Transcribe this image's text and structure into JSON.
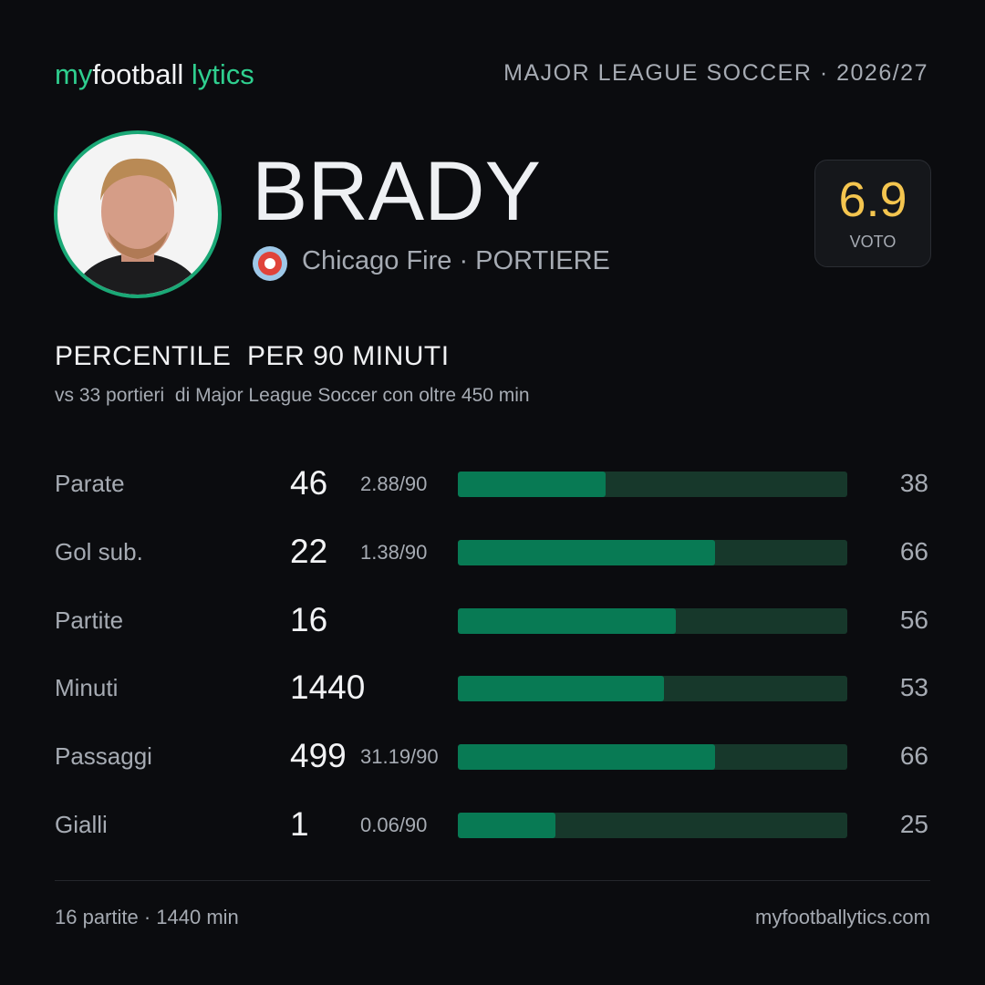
{
  "header": {
    "brand": [
      "my",
      "football",
      "lytics"
    ],
    "league": "MAJOR LEAGUE SOCCER · 2026/27"
  },
  "player": {
    "name": "BRADY",
    "team": "Chicago Fire · PORTIERE",
    "rating": "6.9",
    "rating_label": "VOTO"
  },
  "section": {
    "title": "PERCENTILE  PER 90 MINUTI",
    "subtitle": "vs 33 portieri  di Major League Soccer con oltre 450 min"
  },
  "stats": [
    {
      "label": "Parate",
      "value": 46,
      "per90": "2.88/90",
      "percentile": 38
    },
    {
      "label": "Gol sub.",
      "value": 22,
      "per90": "1.38/90",
      "percentile": 66
    },
    {
      "label": "Partite",
      "value": 16,
      "percentile": 56
    },
    {
      "label": "Minuti",
      "value": 1440,
      "percentile": 53
    },
    {
      "label": "Passaggi",
      "value": 499,
      "per90": "31.19/90",
      "percentile": 66
    },
    {
      "label": "Gialli",
      "value": 1,
      "per90": "0.06/90",
      "percentile": 25
    }
  ],
  "footer": {
    "summary": "16 partite · 1440 min",
    "site": "myfootballytics.com"
  }
}
